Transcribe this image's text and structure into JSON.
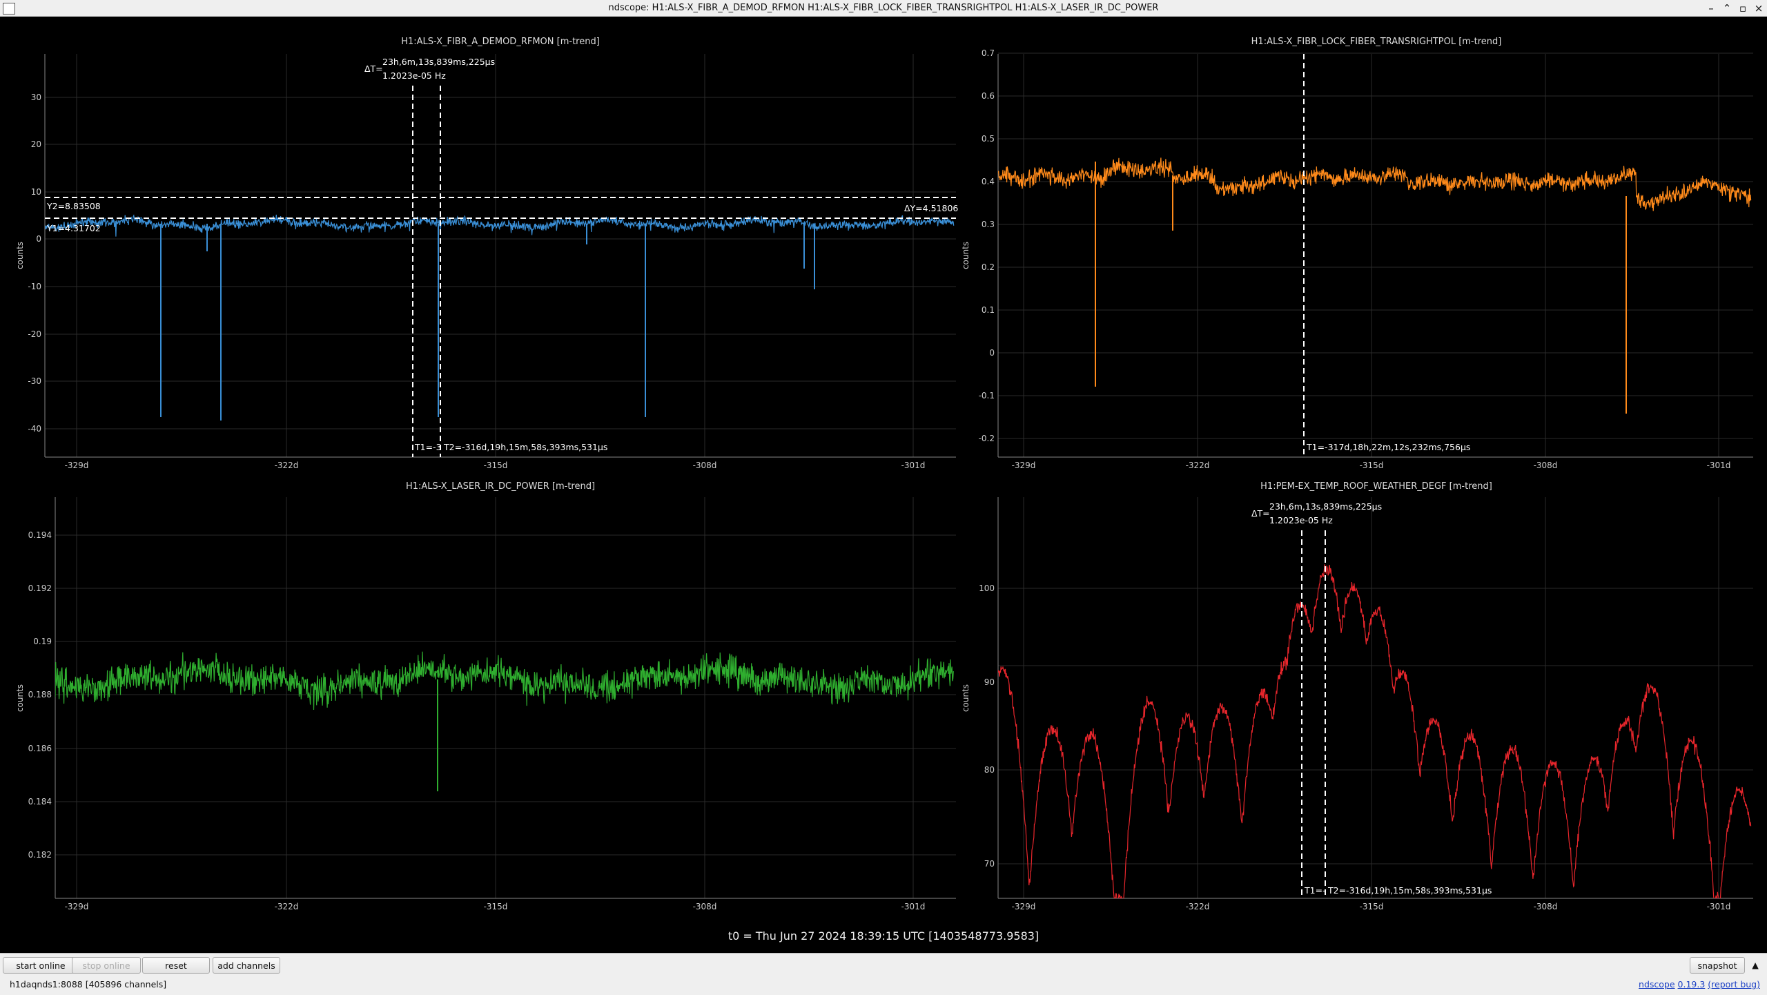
{
  "window": {
    "title": "ndscope: H1:ALS-X_FIBR_A_DEMOD_RFMON H1:ALS-X_FIBR_LOCK_FIBER_TRANSRIGHTPOL H1:ALS-X_LASER_IR_DC_POWER",
    "minimize_glyph": "–",
    "maximize_glyph": "▫",
    "close_glyph": "×"
  },
  "x_ticks": [
    "-329d",
    "-322d",
    "-315d",
    "-308d",
    "-301d"
  ],
  "t0_label": "t0 = Thu Jun 27 2024 18:39:15 UTC [1403548773.9583]",
  "plots": [
    {
      "title": "H1:ALS-X_FIBR_A_DEMOD_RFMON [m-trend]",
      "ylabel": "counts",
      "color": "#3a8fd6",
      "yticks": [
        "30",
        "20",
        "10",
        "0",
        "-10",
        "-20",
        "-30",
        "-40"
      ],
      "cursors": {
        "dt_label": "ΔT=",
        "dt_value": "23h,6m,13s,839ms,225µs",
        "dt_freq": "1.2023e-05 Hz",
        "t1_label": "T1=-3",
        "t2_label": "T2=-316d,19h,15m,58s,393ms,531µs",
        "y2_label": "Y2=8.83508",
        "y1_label": "Y1=4.31702",
        "dy_label": "ΔY=4.51806"
      }
    },
    {
      "title": "H1:ALS-X_FIBR_LOCK_FIBER_TRANSRIGHTPOL [m-trend]",
      "ylabel": "counts",
      "color": "#ff8a1a",
      "yticks": [
        "0.7",
        "0.6",
        "0.5",
        "0.4",
        "0.3",
        "0.2",
        "0.1",
        "0",
        "-0.1",
        "-0.2"
      ],
      "cursors": {
        "t1_label": "T1=-317d,18h,22m,12s,232ms,756µs"
      }
    },
    {
      "title": "H1:ALS-X_LASER_IR_DC_POWER [m-trend]",
      "ylabel": "counts",
      "color": "#2fae2f",
      "yticks": [
        "0.194",
        "0.192",
        "0.19",
        "0.188",
        "0.186",
        "0.184",
        "0.182"
      ]
    },
    {
      "title": "H1:PEM-EX_TEMP_ROOF_WEATHER_DEGF [m-trend]",
      "ylabel": "counts",
      "color": "#e8262c",
      "yticks": [
        "100",
        "90",
        "80",
        "70"
      ],
      "cursors": {
        "dt_label": "ΔT=",
        "dt_value": "23h,6m,13s,839ms,225µs",
        "dt_freq": "1.2023e-05 Hz",
        "t1_label": "T1=-",
        "t2_label": "T2=-316d,19h,15m,58s,393ms,531µs"
      }
    }
  ],
  "toolbar": {
    "start_online": "start online",
    "stop_online": "stop online",
    "reset": "reset",
    "add_channels": "add channels",
    "snapshot": "snapshot",
    "menu_arrow": "▲"
  },
  "status": {
    "server": "h1daqnds1:8088  [405896 channels]",
    "app_name": "ndscope",
    "version": "0.19.3",
    "report_bug": "(report bug)"
  }
}
